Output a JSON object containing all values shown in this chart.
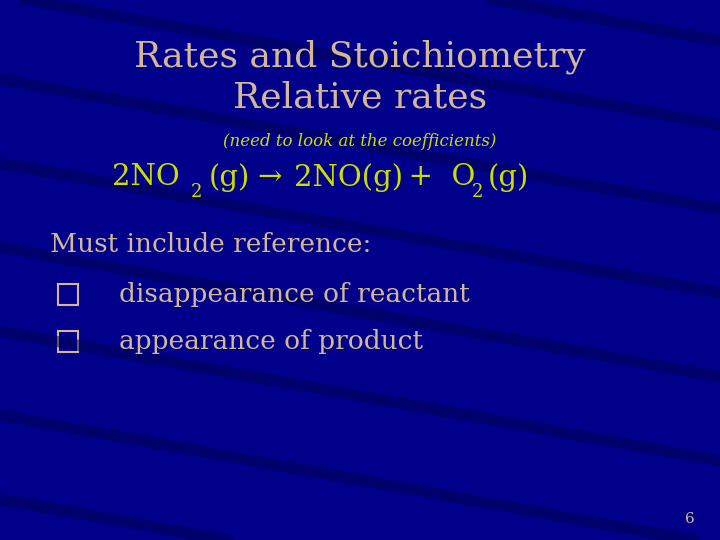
{
  "bg_color": "#00008B",
  "title_line1": "Rates and Stoichiometry",
  "title_line2": "Relative rates",
  "title_color": "#D4B896",
  "subtitle": "(need to look at the coefficients)",
  "subtitle_color": "#CCDD00",
  "equation_color": "#CCDD00",
  "body_color": "#D4B896",
  "bullet_color": "#D4B896",
  "page_number": "6",
  "page_color": "#D4B896",
  "title_fontsize": 26,
  "subtitle_fontsize": 12,
  "equation_fontsize": 21,
  "body_fontsize": 19,
  "bullet_fontsize": 19,
  "page_fontsize": 11,
  "stripe_color": "#000055",
  "stripe_alpha": 0.55,
  "stripe_linewidth": 8
}
